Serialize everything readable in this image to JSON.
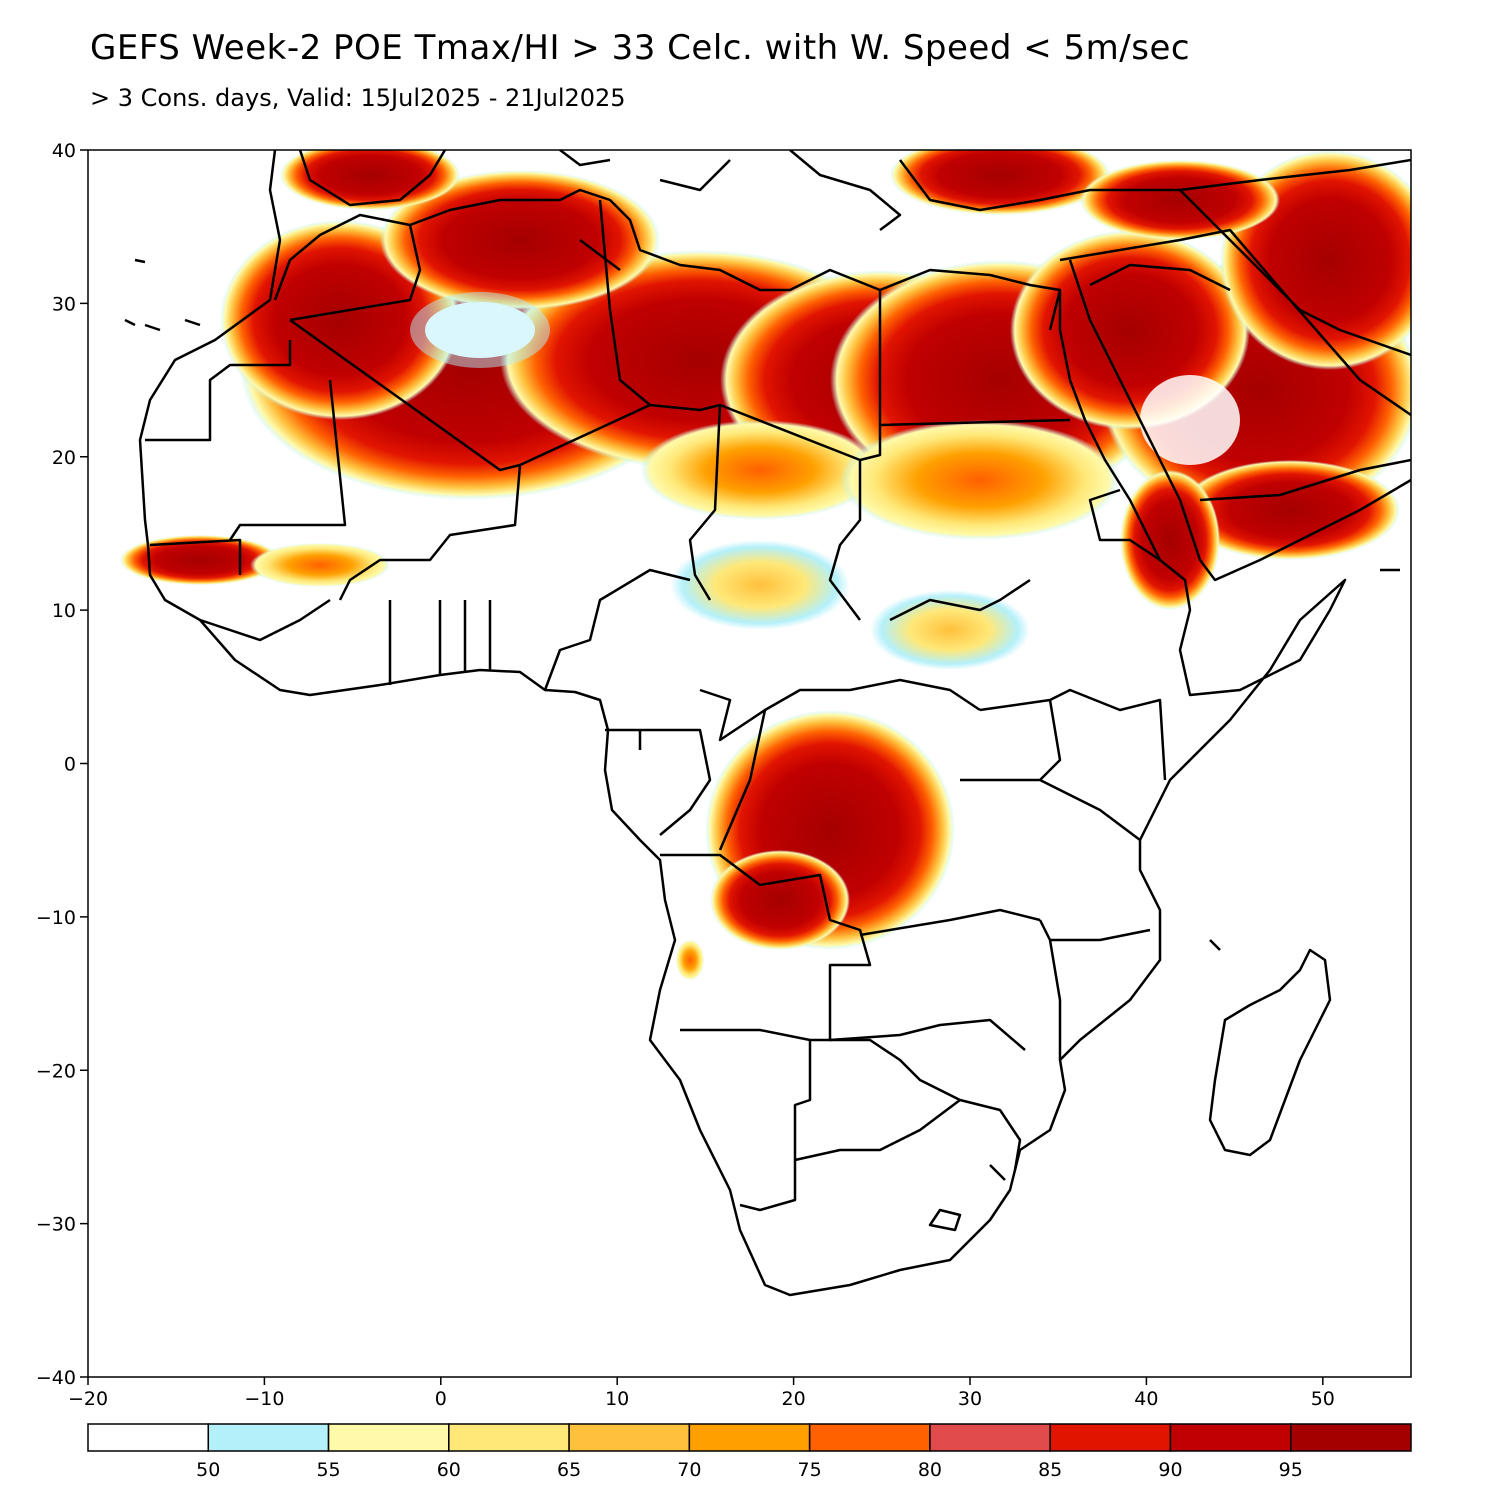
{
  "header": {
    "title": "GEFS Week-2 POE Tmax/HI > 33 Celc. with W. Speed < 5m/sec",
    "subtitle": "> 3 Cons. days, Valid: 15Jul2025 - 21Jul2025"
  },
  "map": {
    "lon_range": [
      -20,
      55
    ],
    "lat_range": [
      -40,
      40
    ],
    "lon_ticks": [
      "−20",
      "−10",
      "0",
      "10",
      "20",
      "30",
      "40",
      "50"
    ],
    "lat_ticks": [
      "40",
      "30",
      "20",
      "10",
      "0",
      "−10",
      "−20",
      "−30",
      "−40"
    ],
    "background": "#ffffff",
    "coastline_color": "#000000"
  },
  "legend": {
    "colors": [
      "#ffffff",
      "#b4f0fa",
      "#fffaaa",
      "#ffe878",
      "#ffc03c",
      "#ffa000",
      "#ff6000",
      "#e14b4b",
      "#e11400",
      "#c00000",
      "#a50000"
    ],
    "labels": [
      "50",
      "55",
      "60",
      "65",
      "70",
      "75",
      "80",
      "85",
      "90",
      "95"
    ]
  }
}
